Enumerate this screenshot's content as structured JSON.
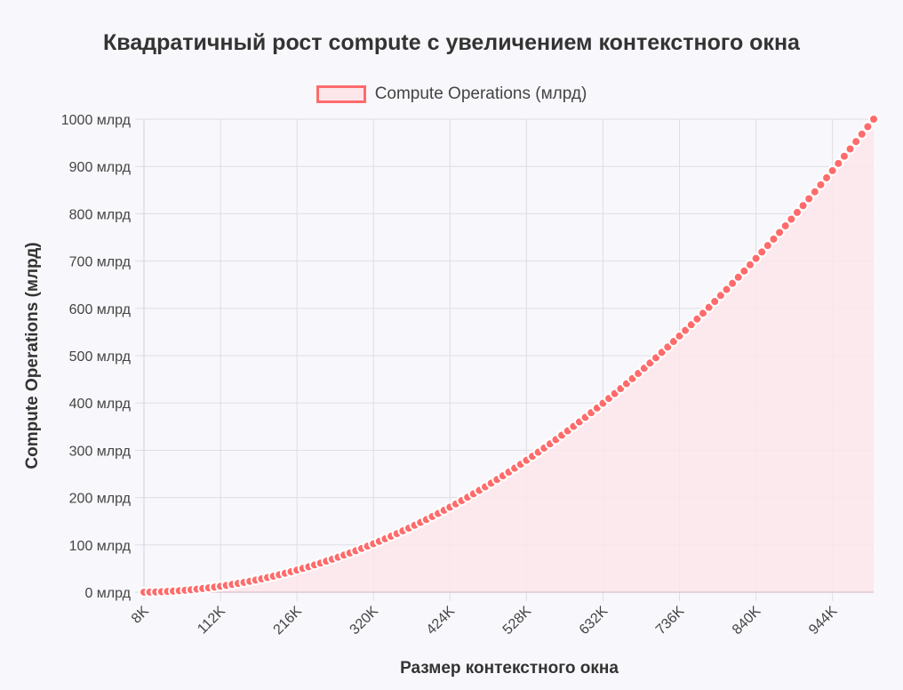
{
  "title": "Квадратичный рост compute с увеличением контекстного окна",
  "legend": {
    "label": "Compute Operations (млрд)"
  },
  "colors": {
    "line": "#ff6b6b",
    "fill": "#fde6ea",
    "background": "#f8f8fc",
    "grid": "#dddde3"
  },
  "chart_data": {
    "type": "line",
    "title": "Квадратичный рост compute с увеличением контекстного окна",
    "xlabel": "Размер контекстного окна",
    "ylabel": "Compute Operations (млрд)",
    "ylim": [
      0,
      1000
    ],
    "yticks": [
      "0 млрд",
      "100 млрд",
      "200 млрд",
      "300 млрд",
      "400 млрд",
      "500 млрд",
      "600 млрд",
      "700 млрд",
      "800 млрд",
      "900 млрд",
      "1000 млрд"
    ],
    "xticks": [
      "8K",
      "112K",
      "216K",
      "320K",
      "424K",
      "528K",
      "632K",
      "736K",
      "840K",
      "944K"
    ],
    "grid": true,
    "legend_position": "top",
    "x_start_k": 8,
    "x_step_k": 8,
    "x_end_k": 1000,
    "formula": "y = (x / 1000K)^2 * 1000",
    "series": [
      {
        "name": "Compute Operations (млрд)",
        "x_k": [
          8,
          16,
          24,
          32,
          40,
          48,
          56,
          64,
          72,
          80,
          88,
          96,
          104,
          112,
          120,
          128,
          136,
          144,
          152,
          160,
          168,
          176,
          184,
          192,
          200,
          208,
          216,
          224,
          232,
          240,
          248,
          256,
          264,
          272,
          280,
          288,
          296,
          304,
          312,
          320,
          328,
          336,
          344,
          352,
          360,
          368,
          376,
          384,
          392,
          400,
          408,
          416,
          424,
          432,
          440,
          448,
          456,
          464,
          472,
          480,
          488,
          496,
          504,
          512,
          520,
          528,
          536,
          544,
          552,
          560,
          568,
          576,
          584,
          592,
          600,
          608,
          616,
          624,
          632,
          640,
          648,
          656,
          664,
          672,
          680,
          688,
          696,
          704,
          712,
          720,
          728,
          736,
          744,
          752,
          760,
          768,
          776,
          784,
          792,
          800,
          808,
          816,
          824,
          832,
          840,
          848,
          856,
          864,
          872,
          880,
          888,
          896,
          904,
          912,
          920,
          928,
          936,
          944,
          952,
          960,
          968,
          976,
          984,
          992,
          1000
        ],
        "values": [
          0.064,
          0.256,
          0.576,
          1.024,
          1.6,
          2.304,
          3.136,
          4.096,
          5.184,
          6.4,
          7.744,
          9.216,
          10.816,
          12.544,
          14.4,
          16.384,
          18.496,
          20.736,
          23.104,
          25.6,
          28.224,
          30.976,
          33.856,
          36.864,
          40,
          43.264,
          46.656,
          50.176,
          53.824,
          57.6,
          61.504,
          65.536,
          69.696,
          73.984,
          78.4,
          82.944,
          87.616,
          92.416,
          97.344,
          102.4,
          107.584,
          112.896,
          118.336,
          123.904,
          129.6,
          135.424,
          141.376,
          147.456,
          153.664,
          160,
          166.464,
          173.056,
          179.776,
          186.624,
          193.6,
          200.704,
          207.936,
          215.296,
          222.784,
          230.4,
          238.144,
          246.016,
          254.016,
          262.144,
          270.4,
          278.784,
          287.296,
          295.936,
          304.704,
          313.6,
          322.624,
          331.776,
          341.056,
          350.464,
          360,
          369.664,
          379.456,
          389.376,
          399.424,
          409.6,
          419.904,
          430.336,
          440.896,
          451.584,
          462.4,
          473.344,
          484.416,
          495.616,
          506.944,
          518.4,
          529.984,
          541.696,
          553.536,
          565.504,
          577.6,
          589.824,
          602.176,
          614.656,
          627.264,
          640,
          652.864,
          665.856,
          678.976,
          692.224,
          705.6,
          719.104,
          732.736,
          746.496,
          760.384,
          774.4,
          788.544,
          802.816,
          817.216,
          831.744,
          846.4,
          861.184,
          876.096,
          891.136,
          906.304,
          921.6,
          937.024,
          952.576,
          968.256,
          984.064,
          1000
        ]
      }
    ]
  }
}
